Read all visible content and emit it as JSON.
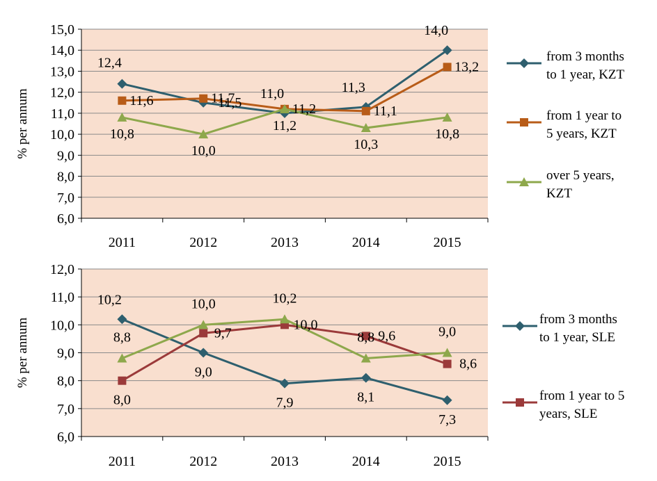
{
  "chart_data": [
    {
      "type": "line",
      "ylabel": "% per annum",
      "ylim": [
        6.0,
        15.0
      ],
      "yticks": [
        "6,0",
        "7,0",
        "8,0",
        "9,0",
        "10,0",
        "11,0",
        "12,0",
        "13,0",
        "14,0",
        "15,0"
      ],
      "categories": [
        "2011",
        "2012",
        "2013",
        "2014",
        "2015"
      ],
      "grid": true,
      "plot_bg": "#f9dfcf",
      "legend_position": "right",
      "series": [
        {
          "name": "from 3 months to 1 year, KZT",
          "legend_lines": [
            "from 3 months",
            "to 1 year, KZT"
          ],
          "color": "#2e5f6e",
          "marker": "diamond",
          "values": [
            12.4,
            11.5,
            11.0,
            11.3,
            14.0
          ],
          "labels": [
            "12,4",
            "11,5",
            "11,0",
            "11,3",
            "14,0"
          ]
        },
        {
          "name": "from 1 year to 5 years, KZT",
          "legend_lines": [
            "from 1 year to",
            "5 years, KZT"
          ],
          "color": "#b85c18",
          "marker": "square",
          "values": [
            11.6,
            11.7,
            11.2,
            11.1,
            13.2
          ],
          "labels": [
            "11,6",
            "11,7",
            "11,2",
            "11,1",
            "13,2"
          ]
        },
        {
          "name": "over 5 years, KZT",
          "legend_lines": [
            "over 5 years,",
            "KZT"
          ],
          "color": "#8ea84c",
          "marker": "triangle",
          "values": [
            10.8,
            10.0,
            11.2,
            10.3,
            10.8
          ],
          "labels": [
            "10,8",
            "10,0",
            "11,2",
            "10,3",
            "10,8"
          ]
        }
      ]
    },
    {
      "type": "line",
      "ylabel": "% per annum",
      "ylim": [
        6.0,
        12.0
      ],
      "yticks": [
        "6,0",
        "7,0",
        "8,0",
        "9,0",
        "10,0",
        "11,0",
        "12,0"
      ],
      "categories": [
        "2011",
        "2012",
        "2013",
        "2014",
        "2015"
      ],
      "grid": true,
      "plot_bg": "#f9dfcf",
      "legend_position": "right",
      "series": [
        {
          "name": "from 3 months to 1 year, SLE",
          "legend_lines": [
            "from 3 months",
            "to 1 year, SLE"
          ],
          "color": "#2e5f6e",
          "marker": "diamond",
          "values": [
            10.2,
            9.0,
            7.9,
            8.1,
            7.3
          ],
          "labels": [
            "10,2",
            "9,0",
            "7,9",
            "8,1",
            "7,3"
          ]
        },
        {
          "name": "from 1 year to 5 years, SLE",
          "legend_lines": [
            "from 1 year to 5",
            "years, SLE"
          ],
          "color": "#9b3a3a",
          "marker": "square",
          "values": [
            8.0,
            9.7,
            10.0,
            9.6,
            8.6
          ],
          "labels": [
            "8,0",
            "9,7",
            "10,0",
            "9,6",
            "8,6"
          ]
        },
        {
          "name": "",
          "legend_lines": [],
          "color": "#8ea84c",
          "marker": "triangle",
          "values": [
            8.8,
            10.0,
            10.2,
            8.8,
            9.0
          ],
          "labels": [
            "8,8",
            "10,0",
            "10,2",
            "8,8",
            "9,0"
          ]
        }
      ]
    }
  ]
}
